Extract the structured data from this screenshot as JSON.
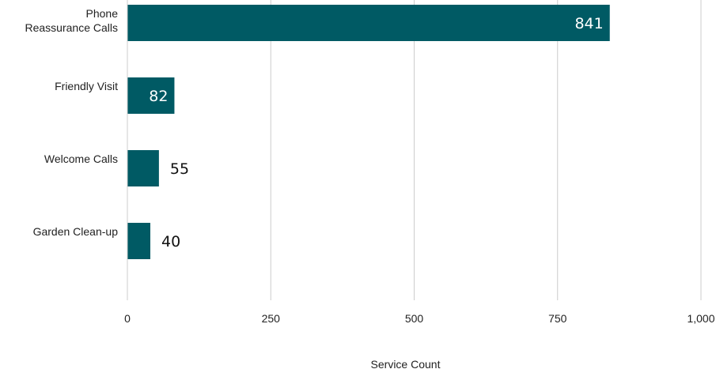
{
  "chart_data": {
    "type": "bar",
    "orientation": "horizontal",
    "categories": [
      [
        "Phone",
        "Reassurance Calls"
      ],
      [
        "Friendly Visit"
      ],
      [
        "Welcome Calls"
      ],
      [
        "Garden Clean-up"
      ]
    ],
    "values": [
      841,
      82,
      55,
      40
    ],
    "data_labels": [
      "841",
      "82",
      "55",
      "40"
    ],
    "xlabel": "Service Count",
    "xlim": [
      0,
      1000
    ],
    "xticks": [
      0,
      250,
      500,
      750,
      1000
    ],
    "xtick_labels": [
      "0",
      "250",
      "500",
      "750",
      "1,000"
    ],
    "grid": "vertical",
    "legend": "none",
    "colors": {
      "bar": "#005a64",
      "grid": "#cccccc",
      "label_inside": "#ffffff",
      "label_outside": "#111111"
    }
  }
}
